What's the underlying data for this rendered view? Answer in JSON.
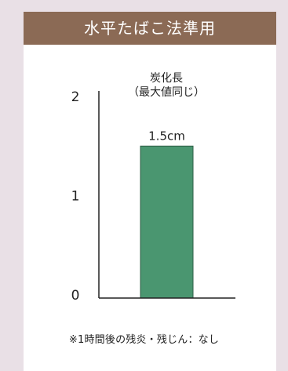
{
  "header": {
    "title": "水平たばこ法準用"
  },
  "chart_data": {
    "type": "bar",
    "categories": [
      "炭化長"
    ],
    "values": [
      1.5
    ],
    "value_labels": [
      "1.5cm"
    ],
    "category_labels": [
      "炭化長",
      "（最大値同じ）"
    ],
    "yticks": [
      "0",
      "1",
      "2"
    ],
    "ylim": [
      0,
      2
    ],
    "bar_color": "#4a9670",
    "axis_color": "#222222"
  },
  "footnote": "※1時間後の残炎・残じん：なし"
}
